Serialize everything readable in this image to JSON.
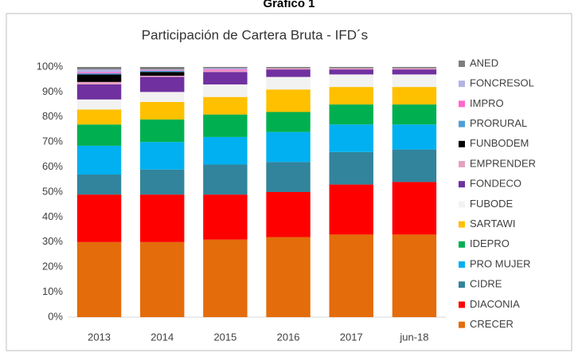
{
  "caption": "Gráfico 1",
  "chart_data": {
    "type": "stacked_bar",
    "title": "Participación de Cartera Bruta - IFD´s",
    "categories": [
      "2013",
      "2014",
      "2015",
      "2016",
      "2017",
      "jun-18"
    ],
    "ylim": [
      0,
      100
    ],
    "yticks": [
      {
        "value": 0,
        "label": "0%"
      },
      {
        "value": 10,
        "label": "10%"
      },
      {
        "value": 20,
        "label": "20%"
      },
      {
        "value": 30,
        "label": "30%"
      },
      {
        "value": 40,
        "label": "40%"
      },
      {
        "value": 50,
        "label": "50%"
      },
      {
        "value": 60,
        "label": "60%"
      },
      {
        "value": 70,
        "label": "70%"
      },
      {
        "value": 80,
        "label": "80%"
      },
      {
        "value": 90,
        "label": "90%"
      },
      {
        "value": 100,
        "label": "100%"
      }
    ],
    "grid": false,
    "legend": "right",
    "series": [
      {
        "name": "CRECER",
        "color": "#e46c0a",
        "values": [
          30,
          30,
          31,
          32,
          33,
          33
        ]
      },
      {
        "name": "DIACONIA",
        "color": "#ff0000",
        "values": [
          19,
          19,
          18,
          18,
          20,
          21
        ]
      },
      {
        "name": "CIDRE",
        "color": "#31849b",
        "values": [
          8,
          10,
          12,
          12,
          13,
          13
        ]
      },
      {
        "name": "PRO MUJER",
        "color": "#00b0f0",
        "values": [
          11.5,
          11,
          11,
          12,
          11,
          10
        ]
      },
      {
        "name": "IDEPRO",
        "color": "#00b050",
        "values": [
          8.5,
          9,
          9,
          8,
          8,
          8
        ]
      },
      {
        "name": "SARTAWI",
        "color": "#ffc000",
        "values": [
          6,
          7,
          7,
          9,
          7,
          7
        ]
      },
      {
        "name": "FUBODE",
        "color": "#f2f2f2",
        "values": [
          4,
          4,
          5,
          5,
          5,
          5
        ]
      },
      {
        "name": "FONDECO",
        "color": "#7030a0",
        "values": [
          6,
          6,
          5,
          3,
          2,
          2
        ]
      },
      {
        "name": "EMPRENDER",
        "color": "#e6a1c0",
        "values": [
          1,
          0.5,
          0.5,
          0.5,
          0.5,
          0.5
        ]
      },
      {
        "name": "FUNBODEM",
        "color": "#000000",
        "values": [
          3,
          1.5,
          0,
          0,
          0,
          0
        ]
      },
      {
        "name": "PRORURAL",
        "color": "#4f9fd6",
        "values": [
          0.5,
          0.5,
          0,
          0,
          0,
          0
        ]
      },
      {
        "name": "IMPRO",
        "color": "#ff66cc",
        "values": [
          0.5,
          0.3,
          0.5,
          0,
          0,
          0
        ]
      },
      {
        "name": "FONCRESOL",
        "color": "#b3b3e6",
        "values": [
          1,
          0.2,
          0.5,
          0,
          0,
          0
        ]
      },
      {
        "name": "ANED",
        "color": "#7f7f7f",
        "values": [
          1,
          1,
          0.5,
          0.5,
          0.5,
          0.5
        ]
      }
    ]
  }
}
